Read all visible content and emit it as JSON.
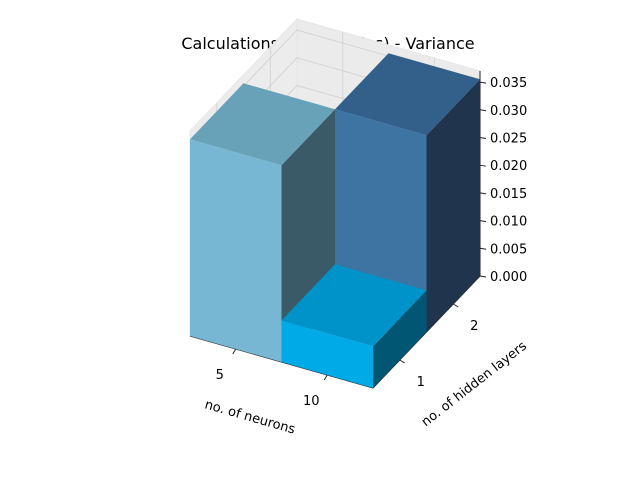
{
  "chart_data": {
    "type": "bar3d",
    "title": "Calculations Duration (ns) - Variance",
    "xlabel": "no. of neurons",
    "ylabel": "no. of hidden layers",
    "zlabel": "",
    "x_ticks": [
      "5",
      "10"
    ],
    "y_ticks": [
      "1",
      "2"
    ],
    "z_ticks": [
      "0.000",
      "0.005",
      "0.010",
      "0.015",
      "0.020",
      "0.025",
      "0.030",
      "0.035"
    ],
    "zlim": [
      0,
      0.037
    ],
    "grid": true,
    "bars": [
      {
        "neurons": "10",
        "hidden_layers": "2",
        "value": 0.0355
      },
      {
        "neurons": "5",
        "hidden_layers": "2",
        "value": 0.001
      },
      {
        "neurons": "5",
        "hidden_layers": "1",
        "value": 0.0355
      },
      {
        "neurons": "10",
        "hidden_layers": "1",
        "value": 0.0075
      }
    ],
    "colors": {
      "bar_n5_h1": {
        "front": "#78b7d4",
        "side": "#3b5a67",
        "top": "#67a2b9"
      },
      "bar_n10_h2": {
        "front": "#3d74a2",
        "side": "#20354d",
        "top": "#32608a"
      },
      "bar_n10_h1": {
        "front": "#00aae6",
        "side": "#005673",
        "top": "#0093c9"
      }
    }
  }
}
